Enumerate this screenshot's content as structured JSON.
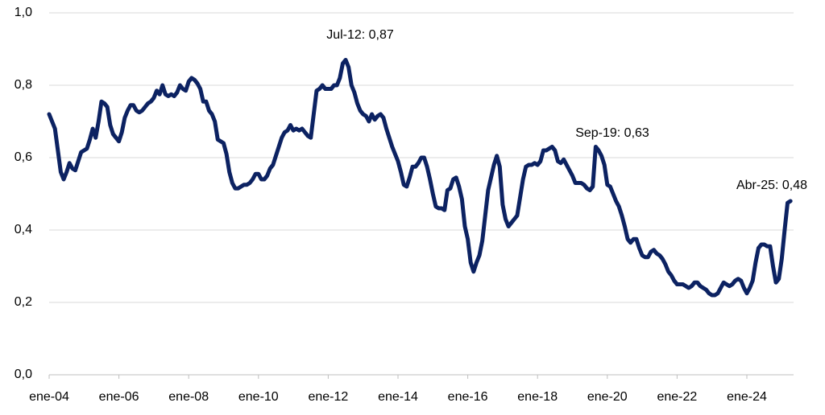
{
  "chart_data": {
    "type": "line",
    "categories": [
      "ene-04",
      null,
      null,
      null,
      null,
      null,
      null,
      null,
      null,
      null,
      null,
      null,
      null,
      null,
      null,
      null,
      null,
      null,
      null,
      null,
      null,
      null,
      null,
      null,
      "ene-06",
      null,
      null,
      null,
      null,
      null,
      null,
      null,
      null,
      null,
      null,
      null,
      null,
      null,
      null,
      null,
      null,
      null,
      null,
      null,
      null,
      null,
      null,
      null,
      "ene-08",
      null,
      null,
      null,
      null,
      null,
      null,
      null,
      null,
      null,
      null,
      null,
      null,
      null,
      null,
      null,
      null,
      null,
      null,
      null,
      null,
      null,
      null,
      null,
      "ene-10",
      null,
      null,
      null,
      null,
      null,
      null,
      null,
      null,
      null,
      null,
      null,
      null,
      null,
      null,
      null,
      null,
      null,
      null,
      null,
      null,
      null,
      null,
      null,
      "ene-12",
      null,
      null,
      null,
      null,
      null,
      null,
      null,
      null,
      null,
      null,
      null,
      null,
      null,
      null,
      null,
      null,
      null,
      null,
      null,
      null,
      null,
      null,
      null,
      "ene-14",
      null,
      null,
      null,
      null,
      null,
      null,
      null,
      null,
      null,
      null,
      null,
      null,
      null,
      null,
      null,
      null,
      null,
      null,
      null,
      null,
      null,
      null,
      null,
      "ene-16",
      null,
      null,
      null,
      null,
      null,
      null,
      null,
      null,
      null,
      null,
      null,
      null,
      null,
      null,
      null,
      null,
      null,
      null,
      null,
      null,
      null,
      null,
      null,
      "ene-18",
      null,
      null,
      null,
      null,
      null,
      null,
      null,
      null,
      null,
      null,
      null,
      null,
      null,
      null,
      null,
      null,
      null,
      null,
      null,
      null,
      null,
      null,
      null,
      "ene-20",
      null,
      null,
      null,
      null,
      null,
      null,
      null,
      null,
      null,
      null,
      null,
      null,
      null,
      null,
      null,
      null,
      null,
      null,
      null,
      null,
      null,
      null,
      null,
      "ene-22",
      null,
      null,
      null,
      null,
      null,
      null,
      null,
      null,
      null,
      null,
      null,
      null,
      null,
      null,
      null,
      null,
      null,
      null,
      null,
      null,
      null,
      null,
      null,
      "ene-24",
      null,
      null,
      null,
      null,
      null,
      null,
      null,
      null,
      null,
      null,
      null,
      null,
      null,
      null,
      null
    ],
    "values": [
      0.72,
      0.7,
      0.68,
      0.62,
      0.56,
      0.54,
      0.56,
      0.585,
      0.57,
      0.565,
      0.59,
      0.615,
      0.62,
      0.625,
      0.65,
      0.68,
      0.655,
      0.7,
      0.755,
      0.75,
      0.74,
      0.69,
      0.665,
      0.655,
      0.645,
      0.67,
      0.71,
      0.73,
      0.745,
      0.745,
      0.73,
      0.725,
      0.73,
      0.74,
      0.75,
      0.755,
      0.765,
      0.785,
      0.775,
      0.8,
      0.775,
      0.77,
      0.775,
      0.77,
      0.78,
      0.8,
      0.79,
      0.785,
      0.81,
      0.82,
      0.815,
      0.805,
      0.79,
      0.755,
      0.755,
      0.73,
      0.72,
      0.7,
      0.65,
      0.645,
      0.64,
      0.61,
      0.56,
      0.53,
      0.515,
      0.515,
      0.52,
      0.525,
      0.525,
      0.53,
      0.54,
      0.555,
      0.555,
      0.54,
      0.54,
      0.55,
      0.57,
      0.58,
      0.605,
      0.63,
      0.655,
      0.67,
      0.675,
      0.69,
      0.675,
      0.68,
      0.675,
      0.68,
      0.67,
      0.66,
      0.655,
      0.72,
      0.785,
      0.79,
      0.8,
      0.79,
      0.79,
      0.79,
      0.8,
      0.8,
      0.82,
      0.86,
      0.87,
      0.85,
      0.8,
      0.78,
      0.75,
      0.73,
      0.72,
      0.715,
      0.7,
      0.72,
      0.705,
      0.715,
      0.72,
      0.71,
      0.68,
      0.655,
      0.63,
      0.61,
      0.59,
      0.56,
      0.525,
      0.52,
      0.545,
      0.575,
      0.575,
      0.585,
      0.6,
      0.6,
      0.575,
      0.54,
      0.5,
      0.465,
      0.46,
      0.46,
      0.455,
      0.51,
      0.515,
      0.54,
      0.545,
      0.52,
      0.485,
      0.41,
      0.375,
      0.31,
      0.285,
      0.31,
      0.33,
      0.37,
      0.44,
      0.51,
      0.545,
      0.58,
      0.605,
      0.575,
      0.47,
      0.43,
      0.41,
      0.42,
      0.43,
      0.44,
      0.49,
      0.54,
      0.575,
      0.58,
      0.58,
      0.585,
      0.58,
      0.59,
      0.62,
      0.62,
      0.625,
      0.63,
      0.62,
      0.59,
      0.585,
      0.595,
      0.58,
      0.565,
      0.55,
      0.53,
      0.53,
      0.53,
      0.525,
      0.515,
      0.51,
      0.52,
      0.63,
      0.62,
      0.605,
      0.58,
      0.525,
      0.52,
      0.5,
      0.48,
      0.465,
      0.44,
      0.41,
      0.375,
      0.365,
      0.375,
      0.375,
      0.35,
      0.33,
      0.325,
      0.325,
      0.34,
      0.345,
      0.335,
      0.33,
      0.32,
      0.305,
      0.285,
      0.275,
      0.26,
      0.25,
      0.25,
      0.25,
      0.245,
      0.24,
      0.245,
      0.255,
      0.255,
      0.245,
      0.24,
      0.235,
      0.225,
      0.22,
      0.22,
      0.225,
      0.24,
      0.255,
      0.25,
      0.245,
      0.25,
      0.26,
      0.265,
      0.26,
      0.24,
      0.225,
      0.24,
      0.26,
      0.31,
      0.35,
      0.36,
      0.36,
      0.355,
      0.355,
      0.3,
      0.255,
      0.265,
      0.32,
      0.4,
      0.475,
      0.48
    ],
    "color": "#0c2262",
    "ylim": [
      0,
      1
    ],
    "yticks": [
      {
        "value": 0,
        "label": "0,0"
      },
      {
        "value": 0.2,
        "label": "0,2"
      },
      {
        "value": 0.4,
        "label": "0,4"
      },
      {
        "value": 0.6,
        "label": "0,6"
      },
      {
        "value": 0.8,
        "label": "0,8"
      },
      {
        "value": 1,
        "label": "1,0"
      }
    ],
    "grid": true,
    "annotations": [
      "Jul-12: 0,87",
      "Sep-19: 0,63",
      "Abr-25: 0,48"
    ]
  }
}
